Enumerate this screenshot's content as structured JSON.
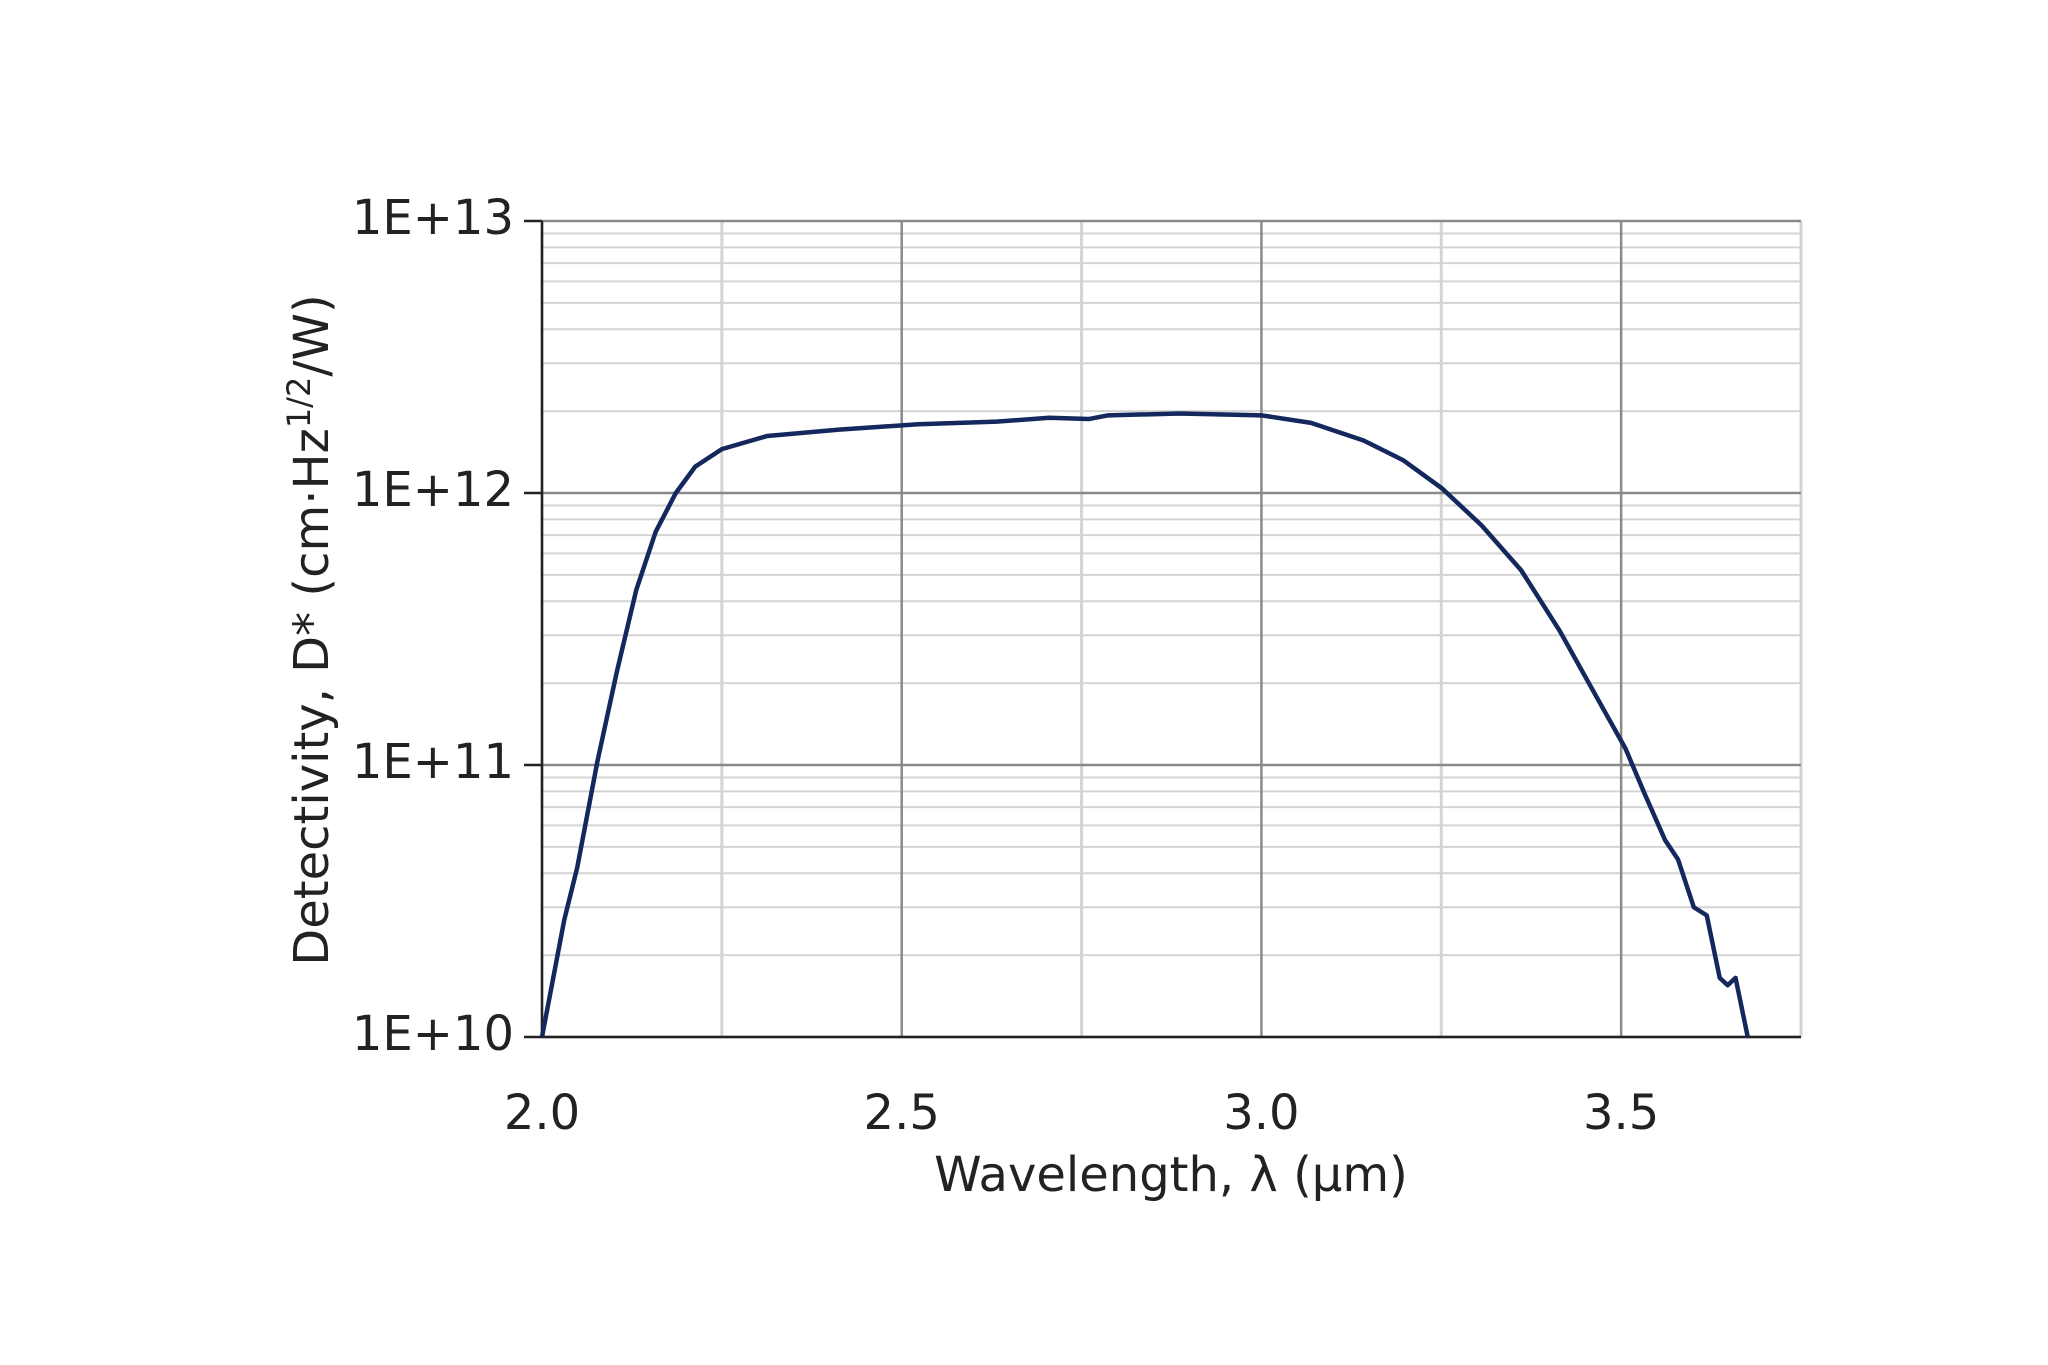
{
  "chart_data": {
    "type": "line",
    "xlabel": "Wavelength, λ (μm)",
    "ylabel": [
      "Detectivity, D* (cm·Hz",
      "1/2",
      "/W)"
    ],
    "xlim": [
      2.0,
      3.75
    ],
    "ylim": [
      10000000000,
      10000000000000
    ],
    "log_y": true,
    "grid": true,
    "xticks": [
      {
        "value": 2.0,
        "label": "2.0"
      },
      {
        "value": 2.5,
        "label": "2.5"
      },
      {
        "value": 3.0,
        "label": "3.0"
      },
      {
        "value": 3.5,
        "label": "3.5"
      }
    ],
    "yticks": [
      {
        "value": 10000000000,
        "label": "1E+10"
      },
      {
        "value": 100000000000,
        "label": "1E+11"
      },
      {
        "value": 1000000000000,
        "label": "1E+12"
      },
      {
        "value": 10000000000000,
        "label": "1E+13"
      }
    ],
    "x": [
      2.0,
      2.031,
      2.049,
      2.077,
      2.104,
      2.131,
      2.158,
      2.186,
      2.213,
      2.25,
      2.313,
      2.413,
      2.523,
      2.632,
      2.705,
      2.76,
      2.787,
      2.887,
      3.0,
      3.069,
      3.142,
      3.197,
      3.251,
      3.306,
      3.361,
      3.415,
      3.47,
      3.506,
      3.533,
      3.561,
      3.579,
      3.601,
      3.619,
      3.637,
      3.648,
      3.659,
      3.676
    ],
    "series": [
      {
        "color": "#14285e",
        "values": [
          10000000000,
          27000000000,
          42000000000,
          103000000000,
          220000000000,
          440000000000,
          720000000000,
          1000000000000,
          1250000000000,
          1450000000000,
          1620000000000,
          1710000000000,
          1790000000000,
          1830000000000,
          1890000000000,
          1870000000000,
          1930000000000,
          1960000000000,
          1930000000000,
          1810000000000,
          1560000000000,
          1320000000000,
          1040000000000,
          760000000000,
          520000000000,
          310000000000,
          170000000000,
          115000000000,
          78000000000,
          53000000000,
          45000000000,
          30000000000,
          28000000000,
          16500000000,
          15500000000,
          16500000000,
          10000000000
        ]
      }
    ]
  }
}
